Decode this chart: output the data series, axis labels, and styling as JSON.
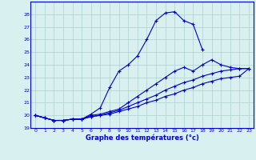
{
  "xlabel": "Graphe des températures (°c)",
  "hours": [
    0,
    1,
    2,
    3,
    4,
    5,
    6,
    7,
    8,
    9,
    10,
    11,
    12,
    13,
    14,
    15,
    16,
    17,
    18,
    19,
    20,
    21,
    22,
    23
  ],
  "line1": [
    20.0,
    19.8,
    19.6,
    19.6,
    19.7,
    19.7,
    20.1,
    20.6,
    22.2,
    23.5,
    24.0,
    24.7,
    26.0,
    27.5,
    28.1,
    28.2,
    27.5,
    27.2,
    25.2,
    null,
    null,
    null,
    null,
    null
  ],
  "line2": [
    20.0,
    19.8,
    19.6,
    19.6,
    19.7,
    19.7,
    20.0,
    20.1,
    20.3,
    20.5,
    21.0,
    21.5,
    22.0,
    22.5,
    23.0,
    23.5,
    23.8,
    23.5,
    24.0,
    24.4,
    24.0,
    23.8,
    23.7,
    23.7
  ],
  "line3": [
    20.0,
    19.8,
    19.6,
    19.6,
    19.7,
    19.7,
    19.9,
    20.0,
    20.2,
    20.4,
    20.7,
    21.0,
    21.3,
    21.6,
    22.0,
    22.3,
    22.6,
    22.8,
    23.1,
    23.3,
    23.5,
    23.6,
    23.7,
    23.7
  ],
  "line4": [
    20.0,
    19.8,
    19.6,
    19.6,
    19.7,
    19.7,
    19.9,
    20.0,
    20.1,
    20.3,
    20.5,
    20.7,
    21.0,
    21.2,
    21.5,
    21.7,
    22.0,
    22.2,
    22.5,
    22.7,
    22.9,
    23.0,
    23.1,
    23.7
  ],
  "line_color": "#0000cc",
  "bg_color": "#d8f0f0",
  "grid_color": "#b0d0d0",
  "ylim": [
    19,
    29
  ],
  "yticks": [
    19,
    20,
    21,
    22,
    23,
    24,
    25,
    26,
    27,
    28
  ],
  "xlim": [
    -0.5,
    23.5
  ],
  "xticks": [
    0,
    1,
    2,
    3,
    4,
    5,
    6,
    7,
    8,
    9,
    10,
    11,
    12,
    13,
    14,
    15,
    16,
    17,
    18,
    19,
    20,
    21,
    22,
    23
  ]
}
